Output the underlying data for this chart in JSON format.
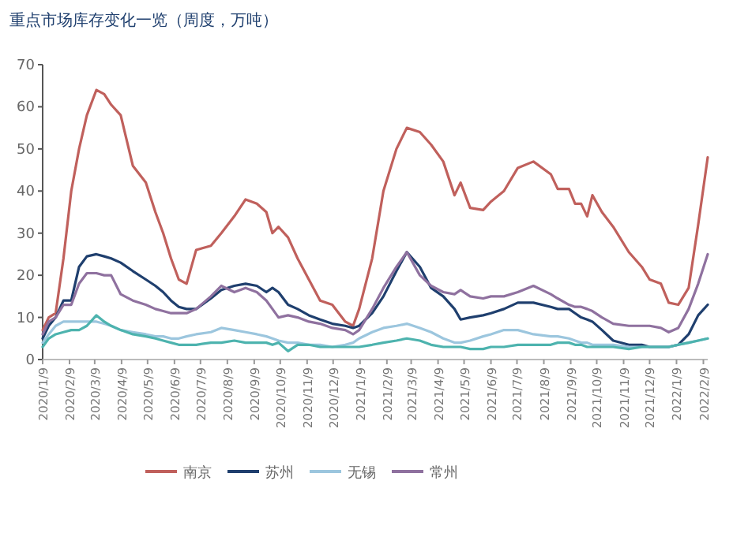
{
  "chart_data": {
    "type": "line",
    "title": "重点市场库存变化一览（周度，万吨）",
    "x": [
      "2020-01-09",
      "2020-01-16",
      "2020-01-24",
      "2020-02-02",
      "2020-02-11",
      "2020-02-20",
      "2020-02-29",
      "2020-03-11",
      "2020-03-20",
      "2020-03-28",
      "2020-04-08",
      "2020-04-22",
      "2020-05-07",
      "2020-05-18",
      "2020-05-27",
      "2020-06-05",
      "2020-06-14",
      "2020-06-23",
      "2020-07-04",
      "2020-07-21",
      "2020-08-02",
      "2020-08-17",
      "2020-08-30",
      "2020-09-12",
      "2020-09-23",
      "2020-09-30",
      "2020-10-07",
      "2020-10-18",
      "2020-10-29",
      "2020-11-11",
      "2020-11-24",
      "2020-12-08",
      "2020-12-23",
      "2021-01-01",
      "2021-01-08",
      "2021-01-23",
      "2021-02-05",
      "2021-02-20",
      "2021-03-04",
      "2021-03-19",
      "2021-04-01",
      "2021-04-15",
      "2021-04-28",
      "2021-05-05",
      "2021-05-16",
      "2021-05-31",
      "2021-06-09",
      "2021-06-24",
      "2021-07-10",
      "2021-07-28",
      "2021-08-17",
      "2021-08-25",
      "2021-09-07",
      "2021-09-14",
      "2021-09-21",
      "2021-09-28",
      "2021-10-04",
      "2021-10-15",
      "2021-10-28",
      "2021-11-15",
      "2021-11-30",
      "2021-12-09",
      "2021-12-22",
      "2021-12-31",
      "2022-01-11",
      "2022-01-23",
      "2022-02-03",
      "2022-02-14"
    ],
    "xlim": [
      "2020-01-09",
      "2022-02-14"
    ],
    "xticks": [
      {
        "value": "2020-01-09",
        "label": "2020/1/9"
      },
      {
        "value": "2020-02-09",
        "label": "2020/2/9"
      },
      {
        "value": "2020-03-09",
        "label": "2020/3/9"
      },
      {
        "value": "2020-04-09",
        "label": "2020/4/9"
      },
      {
        "value": "2020-05-09",
        "label": "2020/5/9"
      },
      {
        "value": "2020-06-09",
        "label": "2020/6/9"
      },
      {
        "value": "2020-07-09",
        "label": "2020/7/9"
      },
      {
        "value": "2020-08-09",
        "label": "2020/8/9"
      },
      {
        "value": "2020-09-09",
        "label": "2020/9/9"
      },
      {
        "value": "2020-10-09",
        "label": "2020/10/9"
      },
      {
        "value": "2020-11-09",
        "label": "2020/11/9"
      },
      {
        "value": "2020-12-09",
        "label": "2020/12/9"
      },
      {
        "value": "2021-01-09",
        "label": "2021/1/9"
      },
      {
        "value": "2021-02-09",
        "label": "2021/2/9"
      },
      {
        "value": "2021-03-09",
        "label": "2021/3/9"
      },
      {
        "value": "2021-04-09",
        "label": "2021/4/9"
      },
      {
        "value": "2021-05-09",
        "label": "2021/5/9"
      },
      {
        "value": "2021-06-09",
        "label": "2021/6/9"
      },
      {
        "value": "2021-07-09",
        "label": "2021/7/9"
      },
      {
        "value": "2021-08-09",
        "label": "2021/8/9"
      },
      {
        "value": "2021-09-09",
        "label": "2021/9/9"
      },
      {
        "value": "2021-10-09",
        "label": "2021/10/9"
      },
      {
        "value": "2021-11-09",
        "label": "2021/11/9"
      },
      {
        "value": "2021-12-09",
        "label": "2021/12/9"
      },
      {
        "value": "2022-01-09",
        "label": "2022/1/9"
      },
      {
        "value": "2022-02-09",
        "label": "2022/2/9"
      }
    ],
    "ylim": [
      0,
      70
    ],
    "yticks": [
      0,
      10,
      20,
      30,
      40,
      50,
      60,
      70
    ],
    "legend": "bottom",
    "series": [
      {
        "name": "南京",
        "color": "#c0605c",
        "values": [
          7,
          10,
          11,
          24,
          40,
          50,
          58,
          64,
          63,
          60.5,
          58,
          46,
          42,
          35,
          30,
          24,
          19,
          18,
          26,
          27,
          30,
          34,
          38,
          37,
          35,
          30,
          31.5,
          29,
          24,
          19,
          14,
          13,
          9,
          8,
          12,
          24,
          40,
          50,
          55,
          54,
          51,
          47,
          39,
          42,
          36,
          35.5,
          37.5,
          40,
          45.5,
          47,
          44,
          40.5,
          40.5,
          37,
          37,
          34,
          39,
          35,
          31.5,
          25.5,
          22,
          19,
          18,
          13.5,
          13,
          17,
          32,
          48
        ]
      },
      {
        "name": "苏州",
        "color": "#1f3f6e",
        "values": [
          5,
          8,
          10,
          14,
          14,
          22,
          24.5,
          25,
          24.5,
          24,
          23,
          21,
          19,
          17.5,
          16,
          14,
          12.5,
          12,
          12,
          14.5,
          16.5,
          17.5,
          18,
          17.5,
          16,
          17,
          16,
          13,
          12,
          10.5,
          9.5,
          8.5,
          8,
          7.5,
          8,
          11,
          15,
          21,
          25.5,
          22,
          17,
          15,
          12,
          9.5,
          10,
          10.5,
          11,
          12,
          13.5,
          13.5,
          12.5,
          12,
          12,
          11,
          10,
          9.5,
          9,
          7,
          4.5,
          3.5,
          3.5,
          3,
          3,
          3,
          3.5,
          6,
          10.5,
          13
        ]
      },
      {
        "name": "无锡",
        "color": "#9cc6de",
        "values": [
          4,
          6,
          8,
          9,
          9,
          9,
          9,
          9,
          8.5,
          8,
          7,
          6.5,
          6,
          5.5,
          5.5,
          5,
          5,
          5.5,
          6,
          6.5,
          7.5,
          7,
          6.5,
          6,
          5.5,
          5,
          4.5,
          4,
          4,
          3.5,
          3.5,
          3,
          3.5,
          4,
          5,
          6.5,
          7.5,
          8,
          8.5,
          7.5,
          6.5,
          5,
          4,
          4,
          4.5,
          5.5,
          6,
          7,
          7,
          6,
          5.5,
          5.5,
          5,
          4.5,
          4,
          4,
          3.5,
          3.5,
          3.5,
          3,
          3,
          3,
          3,
          3,
          3.5,
          4,
          4.5,
          5
        ]
      },
      {
        "name": "常州",
        "color": "#8f719f",
        "values": [
          6,
          9,
          10,
          13,
          13,
          18,
          20.5,
          20.5,
          20,
          20,
          15.5,
          14,
          13,
          12,
          11.5,
          11,
          11,
          11,
          12,
          15,
          17.5,
          16,
          17,
          16,
          14,
          12,
          10,
          10.5,
          10,
          9,
          8.5,
          7.5,
          7,
          6,
          7,
          12,
          17,
          22,
          25.5,
          20,
          17.5,
          16,
          15.5,
          16.5,
          15,
          14.5,
          15,
          15,
          16,
          17.5,
          15.5,
          14.5,
          13,
          12.5,
          12.5,
          12,
          11.5,
          10,
          8.5,
          8,
          8,
          8,
          7.5,
          6.5,
          7.5,
          12,
          18,
          25
        ]
      },
      {
        "color": "#4db3ae",
        "values": [
          3,
          5,
          6,
          6.5,
          7,
          7,
          8,
          10.5,
          9,
          8,
          7,
          6,
          5.5,
          5,
          4.5,
          4,
          3.5,
          3.5,
          3.5,
          4,
          4,
          4.5,
          4,
          4,
          4,
          3.5,
          4,
          2,
          3.5,
          3.5,
          3,
          3,
          3,
          3,
          3,
          3.5,
          4,
          4.5,
          5,
          4.5,
          3.5,
          3,
          3,
          3,
          2.5,
          2.5,
          3,
          3,
          3.5,
          3.5,
          3.5,
          4,
          4,
          3.5,
          3.5,
          3,
          3,
          3,
          3,
          2.5,
          3,
          3,
          3,
          3,
          3.5,
          4,
          4.5,
          5
        ]
      }
    ]
  }
}
